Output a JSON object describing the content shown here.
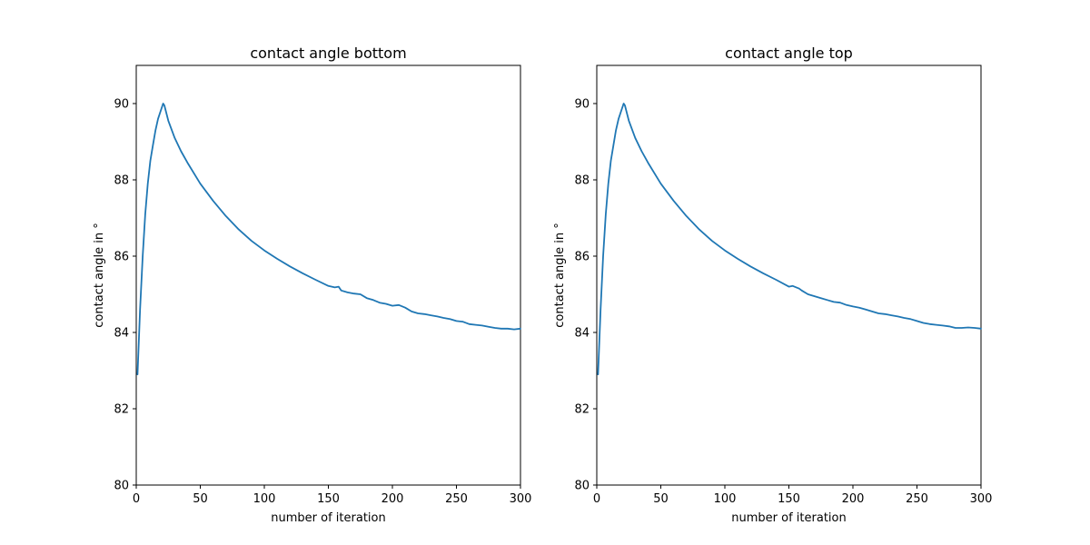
{
  "chart_data": [
    {
      "type": "line",
      "title": "contact angle bottom",
      "xlabel": "number of iteration",
      "ylabel": "contact angle in °",
      "xlim": [
        0,
        300
      ],
      "ylim": [
        80,
        91
      ],
      "xticks": [
        0,
        50,
        100,
        150,
        200,
        250,
        300
      ],
      "yticks": [
        80,
        82,
        84,
        86,
        88,
        90
      ],
      "grid": false,
      "series": [
        {
          "color": "#1f77b4",
          "x": [
            1,
            3,
            5,
            7,
            9,
            11,
            13,
            15,
            17,
            19,
            21,
            22,
            25,
            30,
            35,
            40,
            50,
            60,
            70,
            80,
            90,
            100,
            110,
            120,
            130,
            140,
            150,
            155,
            158,
            160,
            165,
            170,
            175,
            180,
            185,
            190,
            195,
            200,
            205,
            210,
            215,
            220,
            225,
            230,
            235,
            240,
            245,
            250,
            255,
            260,
            265,
            270,
            275,
            280,
            285,
            290,
            295,
            300
          ],
          "y": [
            82.9,
            84.6,
            86.0,
            87.1,
            87.9,
            88.5,
            88.9,
            89.3,
            89.6,
            89.8,
            90.0,
            89.95,
            89.55,
            89.1,
            88.75,
            88.45,
            87.9,
            87.45,
            87.05,
            86.7,
            86.4,
            86.15,
            85.93,
            85.73,
            85.55,
            85.38,
            85.22,
            85.18,
            85.2,
            85.1,
            85.05,
            85.02,
            85.0,
            84.9,
            84.85,
            84.78,
            84.75,
            84.7,
            84.72,
            84.65,
            84.55,
            84.5,
            84.48,
            84.45,
            84.42,
            84.38,
            84.35,
            84.3,
            84.28,
            84.22,
            84.2,
            84.18,
            84.15,
            84.12,
            84.1,
            84.1,
            84.08,
            84.1
          ]
        }
      ]
    },
    {
      "type": "line",
      "title": "contact angle top",
      "xlabel": "number of iteration",
      "ylabel": "contact angle in °",
      "xlim": [
        0,
        300
      ],
      "ylim": [
        80,
        91
      ],
      "xticks": [
        0,
        50,
        100,
        150,
        200,
        250,
        300
      ],
      "yticks": [
        80,
        82,
        84,
        86,
        88,
        90
      ],
      "grid": false,
      "series": [
        {
          "color": "#1f77b4",
          "x": [
            1,
            3,
            5,
            7,
            9,
            11,
            13,
            15,
            17,
            19,
            21,
            22,
            25,
            30,
            35,
            40,
            50,
            60,
            70,
            80,
            90,
            100,
            110,
            120,
            130,
            140,
            150,
            153,
            158,
            160,
            165,
            170,
            175,
            180,
            185,
            190,
            195,
            200,
            205,
            210,
            215,
            220,
            225,
            230,
            235,
            240,
            245,
            250,
            255,
            260,
            265,
            270,
            275,
            280,
            285,
            290,
            295,
            300
          ],
          "y": [
            82.9,
            84.6,
            86.0,
            87.1,
            87.9,
            88.5,
            88.9,
            89.3,
            89.6,
            89.8,
            90.0,
            89.95,
            89.55,
            89.1,
            88.75,
            88.45,
            87.9,
            87.45,
            87.05,
            86.7,
            86.4,
            86.15,
            85.93,
            85.73,
            85.55,
            85.38,
            85.2,
            85.22,
            85.15,
            85.1,
            85.0,
            84.95,
            84.9,
            84.85,
            84.8,
            84.78,
            84.72,
            84.68,
            84.65,
            84.6,
            84.55,
            84.5,
            84.48,
            84.45,
            84.42,
            84.38,
            84.35,
            84.3,
            84.25,
            84.22,
            84.2,
            84.18,
            84.16,
            84.12,
            84.12,
            84.13,
            84.12,
            84.1
          ]
        }
      ]
    }
  ]
}
